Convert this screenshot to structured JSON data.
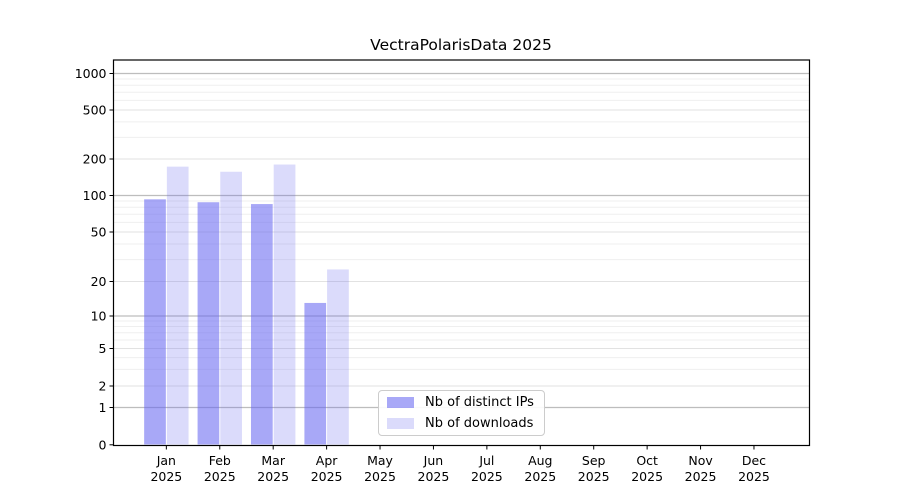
{
  "chart_data": {
    "type": "bar",
    "title": "VectraPolarisData 2025",
    "categories": [
      "Jan",
      "Feb",
      "Mar",
      "Apr",
      "May",
      "Jun",
      "Jul",
      "Aug",
      "Sep",
      "Oct",
      "Nov",
      "Dec"
    ],
    "category_year": "2025",
    "series": [
      {
        "name": "Nb of distinct IPs",
        "color": "#6464f0",
        "alpha": 0.56,
        "values": [
          93,
          88,
          85,
          13,
          0,
          0,
          0,
          0,
          0,
          0,
          0,
          0
        ]
      },
      {
        "name": "Nb of downloads",
        "color": "#6464f0",
        "alpha": 0.235,
        "values": [
          173,
          157,
          180,
          25,
          0,
          0,
          0,
          0,
          0,
          0,
          0,
          0
        ]
      }
    ],
    "y_ticks": [
      0,
      1,
      2,
      5,
      10,
      20,
      50,
      100,
      200,
      500,
      1000
    ],
    "yscale": "symlog",
    "ylim": [
      0,
      1300
    ],
    "grid": true,
    "legend_position": "lower-center",
    "colors": {
      "grid_major": "#bdbdbd",
      "grid_mid": "#e2e2e2",
      "grid_minor": "#efefef",
      "axis": "#000000",
      "text": "#000000"
    }
  }
}
